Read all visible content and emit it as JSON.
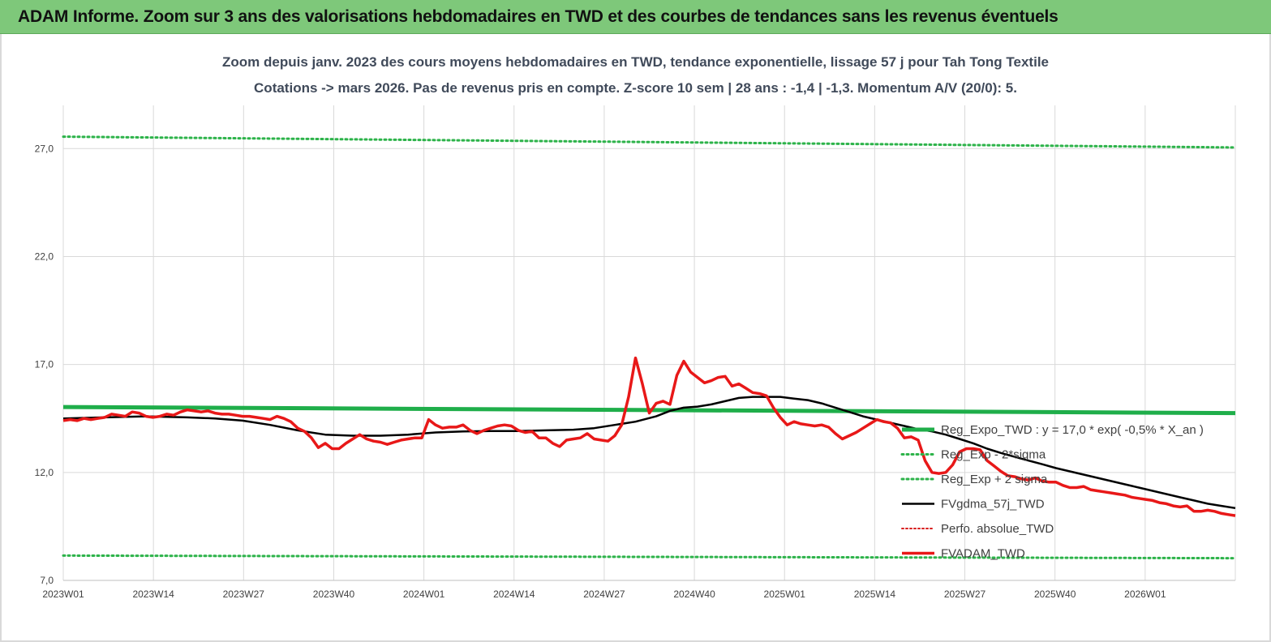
{
  "banner": {
    "title": "ADAM Informe. Zoom sur 3 ans des valorisations hebdomadaires en TWD et des courbes de tendances sans les revenus éventuels"
  },
  "colors": {
    "banner": "#7ec87a",
    "reg_expo": "#1fae4a",
    "sigma": "#2db34a",
    "fvgdma": "#000000",
    "fvadam": "#e81818",
    "perfo": "#d82020",
    "grid": "#d9d9d9"
  },
  "chart_data": {
    "type": "line",
    "title": "Zoom depuis janv. 2023 des cours moyens hebdomadaires en TWD, tendance exponentielle, lissage 57 j pour Tah Tong Textile",
    "subtitle": "Cotations -> mars 2026. Pas de revenus pris en compte. Z-score 10 sem | 28 ans : -1,4 | -1,3. Momentum A/V (20/0): 5.",
    "xlabel": "",
    "ylabel": "",
    "ylim": [
      7.0,
      29.0
    ],
    "grid": "vertical and horizontal",
    "legend_position": "right",
    "x_tick_labels": [
      "2023W01",
      "2023W14",
      "2023W27",
      "2023W40",
      "2024W01",
      "2024W14",
      "2024W27",
      "2024W40",
      "2025W01",
      "2025W14",
      "2025W27",
      "2025W40",
      "2026W01"
    ],
    "y_ticks": [
      7.0,
      12.0,
      17.0,
      22.0,
      27.0
    ],
    "y_tick_labels": [
      "7,0",
      "12,0",
      "17,0",
      "22,0",
      "27,0"
    ],
    "x_range_weeks": [
      0,
      170
    ],
    "series": [
      {
        "name": "Reg_Expo_TWD : y = 17,0 * exp( -0,5% *  X_an )",
        "style": "solid-thick",
        "points": [
          [
            0,
            15.03
          ],
          [
            170,
            14.75
          ]
        ]
      },
      {
        "name": "Reg_Exp - 2*sigma",
        "style": "dotted",
        "points": [
          [
            0,
            8.15
          ],
          [
            170,
            8.03
          ]
        ]
      },
      {
        "name": "Reg_Exp + 2 sigma",
        "style": "dotted",
        "points": [
          [
            0,
            27.55
          ],
          [
            170,
            27.05
          ]
        ]
      },
      {
        "name": "FVgdma_57j_TWD",
        "style": "solid",
        "points": [
          [
            0,
            14.5
          ],
          [
            6,
            14.55
          ],
          [
            12,
            14.6
          ],
          [
            18,
            14.55
          ],
          [
            22,
            14.5
          ],
          [
            26,
            14.4
          ],
          [
            30,
            14.2
          ],
          [
            34,
            13.95
          ],
          [
            38,
            13.75
          ],
          [
            42,
            13.7
          ],
          [
            46,
            13.7
          ],
          [
            50,
            13.75
          ],
          [
            54,
            13.85
          ],
          [
            58,
            13.9
          ],
          [
            62,
            13.92
          ],
          [
            66,
            13.92
          ],
          [
            70,
            13.95
          ],
          [
            74,
            13.98
          ],
          [
            77,
            14.05
          ],
          [
            80,
            14.2
          ],
          [
            83,
            14.35
          ],
          [
            86,
            14.6
          ],
          [
            88,
            14.85
          ],
          [
            90,
            15.0
          ],
          [
            92,
            15.05
          ],
          [
            94,
            15.15
          ],
          [
            96,
            15.3
          ],
          [
            98,
            15.45
          ],
          [
            100,
            15.5
          ],
          [
            104,
            15.5
          ],
          [
            106,
            15.42
          ],
          [
            108,
            15.35
          ],
          [
            110,
            15.2
          ],
          [
            112,
            15.0
          ],
          [
            114,
            14.8
          ],
          [
            116,
            14.6
          ],
          [
            118,
            14.45
          ],
          [
            120,
            14.3
          ],
          [
            122,
            14.15
          ],
          [
            124,
            14.0
          ],
          [
            126,
            13.9
          ],
          [
            128,
            13.75
          ],
          [
            130,
            13.55
          ],
          [
            132,
            13.35
          ],
          [
            134,
            13.1
          ],
          [
            136,
            12.9
          ],
          [
            138,
            12.72
          ],
          [
            140,
            12.55
          ],
          [
            142,
            12.38
          ],
          [
            144,
            12.2
          ],
          [
            146,
            12.05
          ],
          [
            148,
            11.9
          ],
          [
            150,
            11.75
          ],
          [
            152,
            11.6
          ],
          [
            154,
            11.45
          ],
          [
            156,
            11.3
          ],
          [
            158,
            11.15
          ],
          [
            160,
            11.0
          ],
          [
            162,
            10.85
          ],
          [
            164,
            10.7
          ],
          [
            166,
            10.55
          ],
          [
            168,
            10.45
          ],
          [
            170,
            10.35
          ]
        ]
      },
      {
        "name": "Perfo. absolue_TWD",
        "style": "dotted",
        "points": []
      },
      {
        "name": "FVADAM_TWD",
        "style": "solid-thick",
        "points": [
          [
            0,
            14.4
          ],
          [
            1,
            14.45
          ],
          [
            2,
            14.4
          ],
          [
            3,
            14.5
          ],
          [
            4,
            14.45
          ],
          [
            5,
            14.5
          ],
          [
            6,
            14.55
          ],
          [
            7,
            14.7
          ],
          [
            8,
            14.65
          ],
          [
            9,
            14.6
          ],
          [
            10,
            14.8
          ],
          [
            11,
            14.75
          ],
          [
            12,
            14.6
          ],
          [
            13,
            14.55
          ],
          [
            14,
            14.6
          ],
          [
            15,
            14.7
          ],
          [
            16,
            14.65
          ],
          [
            17,
            14.8
          ],
          [
            18,
            14.9
          ],
          [
            19,
            14.85
          ],
          [
            20,
            14.8
          ],
          [
            21,
            14.85
          ],
          [
            22,
            14.75
          ],
          [
            23,
            14.7
          ],
          [
            24,
            14.7
          ],
          [
            25,
            14.65
          ],
          [
            26,
            14.6
          ],
          [
            27,
            14.6
          ],
          [
            28,
            14.55
          ],
          [
            29,
            14.5
          ],
          [
            30,
            14.45
          ],
          [
            31,
            14.6
          ],
          [
            32,
            14.5
          ],
          [
            33,
            14.35
          ],
          [
            34,
            14.05
          ],
          [
            35,
            13.9
          ],
          [
            36,
            13.6
          ],
          [
            37,
            13.15
          ],
          [
            38,
            13.35
          ],
          [
            39,
            13.1
          ],
          [
            40,
            13.1
          ],
          [
            41,
            13.35
          ],
          [
            42,
            13.55
          ],
          [
            43,
            13.75
          ],
          [
            44,
            13.55
          ],
          [
            45,
            13.45
          ],
          [
            46,
            13.4
          ],
          [
            47,
            13.3
          ],
          [
            48,
            13.4
          ],
          [
            49,
            13.5
          ],
          [
            50,
            13.55
          ],
          [
            51,
            13.6
          ],
          [
            52,
            13.6
          ],
          [
            53,
            14.45
          ],
          [
            54,
            14.2
          ],
          [
            55,
            14.05
          ],
          [
            56,
            14.1
          ],
          [
            57,
            14.1
          ],
          [
            58,
            14.2
          ],
          [
            59,
            13.95
          ],
          [
            60,
            13.8
          ],
          [
            61,
            13.95
          ],
          [
            62,
            14.05
          ],
          [
            63,
            14.15
          ],
          [
            64,
            14.2
          ],
          [
            65,
            14.15
          ],
          [
            66,
            13.95
          ],
          [
            67,
            13.85
          ],
          [
            68,
            13.9
          ],
          [
            69,
            13.6
          ],
          [
            70,
            13.6
          ],
          [
            71,
            13.35
          ],
          [
            72,
            13.2
          ],
          [
            73,
            13.5
          ],
          [
            74,
            13.55
          ],
          [
            75,
            13.6
          ],
          [
            76,
            13.8
          ],
          [
            77,
            13.55
          ],
          [
            78,
            13.5
          ],
          [
            79,
            13.45
          ],
          [
            80,
            13.7
          ],
          [
            81,
            14.2
          ],
          [
            82,
            15.5
          ],
          [
            83,
            17.3
          ],
          [
            84,
            16.1
          ],
          [
            85,
            14.75
          ],
          [
            86,
            15.2
          ],
          [
            87,
            15.3
          ],
          [
            88,
            15.15
          ],
          [
            89,
            16.5
          ],
          [
            90,
            17.15
          ],
          [
            91,
            16.65
          ],
          [
            92,
            16.4
          ],
          [
            93,
            16.15
          ],
          [
            94,
            16.25
          ],
          [
            95,
            16.4
          ],
          [
            96,
            16.45
          ],
          [
            97,
            16.0
          ],
          [
            98,
            16.1
          ],
          [
            99,
            15.9
          ],
          [
            100,
            15.7
          ],
          [
            101,
            15.65
          ],
          [
            102,
            15.55
          ],
          [
            103,
            15.0
          ],
          [
            104,
            14.55
          ],
          [
            105,
            14.2
          ],
          [
            106,
            14.35
          ],
          [
            107,
            14.25
          ],
          [
            108,
            14.2
          ],
          [
            109,
            14.15
          ],
          [
            110,
            14.2
          ],
          [
            111,
            14.1
          ],
          [
            112,
            13.8
          ],
          [
            113,
            13.55
          ],
          [
            114,
            13.7
          ],
          [
            115,
            13.85
          ],
          [
            116,
            14.05
          ],
          [
            117,
            14.25
          ],
          [
            118,
            14.45
          ],
          [
            119,
            14.35
          ],
          [
            120,
            14.3
          ],
          [
            121,
            14.05
          ],
          [
            122,
            13.6
          ],
          [
            123,
            13.65
          ],
          [
            124,
            13.5
          ],
          [
            125,
            12.55
          ],
          [
            126,
            12.0
          ],
          [
            127,
            11.95
          ],
          [
            128,
            12.0
          ],
          [
            129,
            12.35
          ],
          [
            130,
            12.95
          ],
          [
            131,
            13.1
          ],
          [
            132,
            13.1
          ],
          [
            133,
            13.05
          ],
          [
            134,
            12.55
          ],
          [
            135,
            12.3
          ],
          [
            136,
            12.05
          ],
          [
            137,
            11.85
          ],
          [
            138,
            11.8
          ],
          [
            139,
            11.7
          ],
          [
            140,
            11.65
          ],
          [
            141,
            11.75
          ],
          [
            142,
            11.6
          ],
          [
            143,
            11.55
          ],
          [
            144,
            11.55
          ],
          [
            145,
            11.4
          ],
          [
            146,
            11.3
          ],
          [
            147,
            11.3
          ],
          [
            148,
            11.35
          ],
          [
            149,
            11.2
          ],
          [
            150,
            11.15
          ],
          [
            151,
            11.1
          ],
          [
            152,
            11.05
          ],
          [
            153,
            11.0
          ],
          [
            154,
            10.95
          ],
          [
            155,
            10.85
          ],
          [
            156,
            10.8
          ],
          [
            157,
            10.75
          ],
          [
            158,
            10.7
          ],
          [
            159,
            10.6
          ],
          [
            160,
            10.55
          ],
          [
            161,
            10.45
          ],
          [
            162,
            10.4
          ],
          [
            163,
            10.45
          ],
          [
            164,
            10.2
          ],
          [
            165,
            10.2
          ],
          [
            166,
            10.25
          ],
          [
            167,
            10.2
          ],
          [
            168,
            10.1
          ],
          [
            169,
            10.05
          ],
          [
            170,
            10.0
          ]
        ]
      }
    ]
  }
}
